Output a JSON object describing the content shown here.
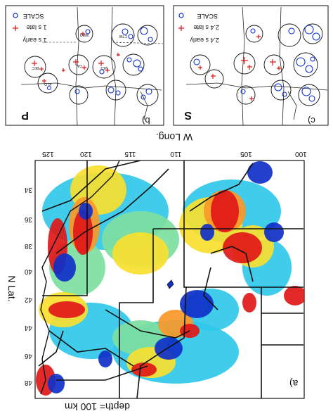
{
  "panel_a": {
    "label": "a)",
    "title": "depth= 100 km",
    "xlabel": "W Long.",
    "ylabel": "N Lat.",
    "x_ticks": [
      "125",
      "120",
      "115",
      "110",
      "105",
      "100"
    ],
    "y_ticks": [
      "34",
      "36",
      "38",
      "40",
      "42",
      "44",
      "46",
      "48"
    ]
  },
  "panel_b": {
    "label": "b)",
    "phase": "P",
    "legend_early": "1 s early",
    "legend_late": "1 s late",
    "scale": "SCALE",
    "stations": [
      "WMQ",
      "CTW",
      "MCF",
      "RFC",
      "CAL",
      "KLO"
    ]
  },
  "panel_c": {
    "label": "c)",
    "phase": "S",
    "legend_early": "2.4 s early",
    "legend_late": "2.4 s late",
    "scale": "SCALE"
  },
  "colors": {
    "fast": "#1030c8",
    "slow": "#e01818",
    "neutral": "#ffffff"
  }
}
